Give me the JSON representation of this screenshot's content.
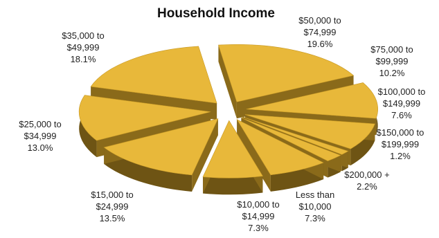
{
  "chart_data": {
    "type": "pie",
    "title": "Household Income",
    "exploded": true,
    "style": "3d",
    "slice_color": "#E8B83A",
    "side_color": "#6E5414",
    "slices": [
      {
        "label_lines": [
          "$50,000 to",
          "$74,999",
          "19.6%"
        ],
        "value": 19.6
      },
      {
        "label_lines": [
          "$75,000 to",
          "$99,999",
          "10.2%"
        ],
        "value": 10.2
      },
      {
        "label_lines": [
          "$100,000 to",
          "$149,999",
          "7.6%"
        ],
        "value": 7.6
      },
      {
        "label_lines": [
          "$150,000 to",
          "$199,999",
          "1.2%"
        ],
        "value": 1.2
      },
      {
        "label_lines": [
          "$200,000 +",
          "2.2%"
        ],
        "value": 2.2
      },
      {
        "label_lines": [
          "Less than",
          "$10,000",
          "7.3%"
        ],
        "value": 7.3
      },
      {
        "label_lines": [
          "$10,000 to",
          "$14,999",
          "7.3%"
        ],
        "value": 7.3
      },
      {
        "label_lines": [
          "$15,000 to",
          "$24,999",
          "13.5%"
        ],
        "value": 13.5
      },
      {
        "label_lines": [
          "$25,000 to",
          "$34,999",
          "13.0%"
        ],
        "value": 13.0
      },
      {
        "label_lines": [
          "$35,000 to",
          "$49,999",
          "18.1%"
        ],
        "value": 18.1
      }
    ]
  }
}
